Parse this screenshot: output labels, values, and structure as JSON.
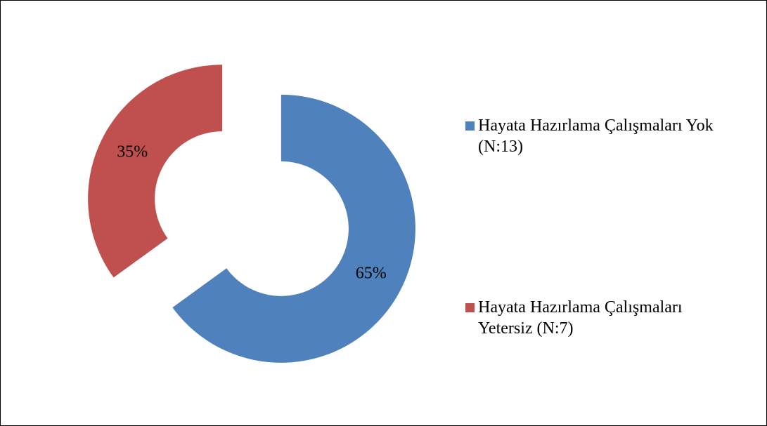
{
  "chart_data": {
    "type": "donut",
    "categories": [
      "Hayata Hazırlama Çalışmaları Yok (N:13)",
      "Hayata Hazırlama Çalışmaları Yetersiz (N:7)"
    ],
    "values": [
      65,
      35
    ],
    "value_labels": [
      "65%",
      "35%"
    ],
    "colors": [
      "#4f81bd",
      "#c0504d"
    ],
    "legend": "right"
  }
}
